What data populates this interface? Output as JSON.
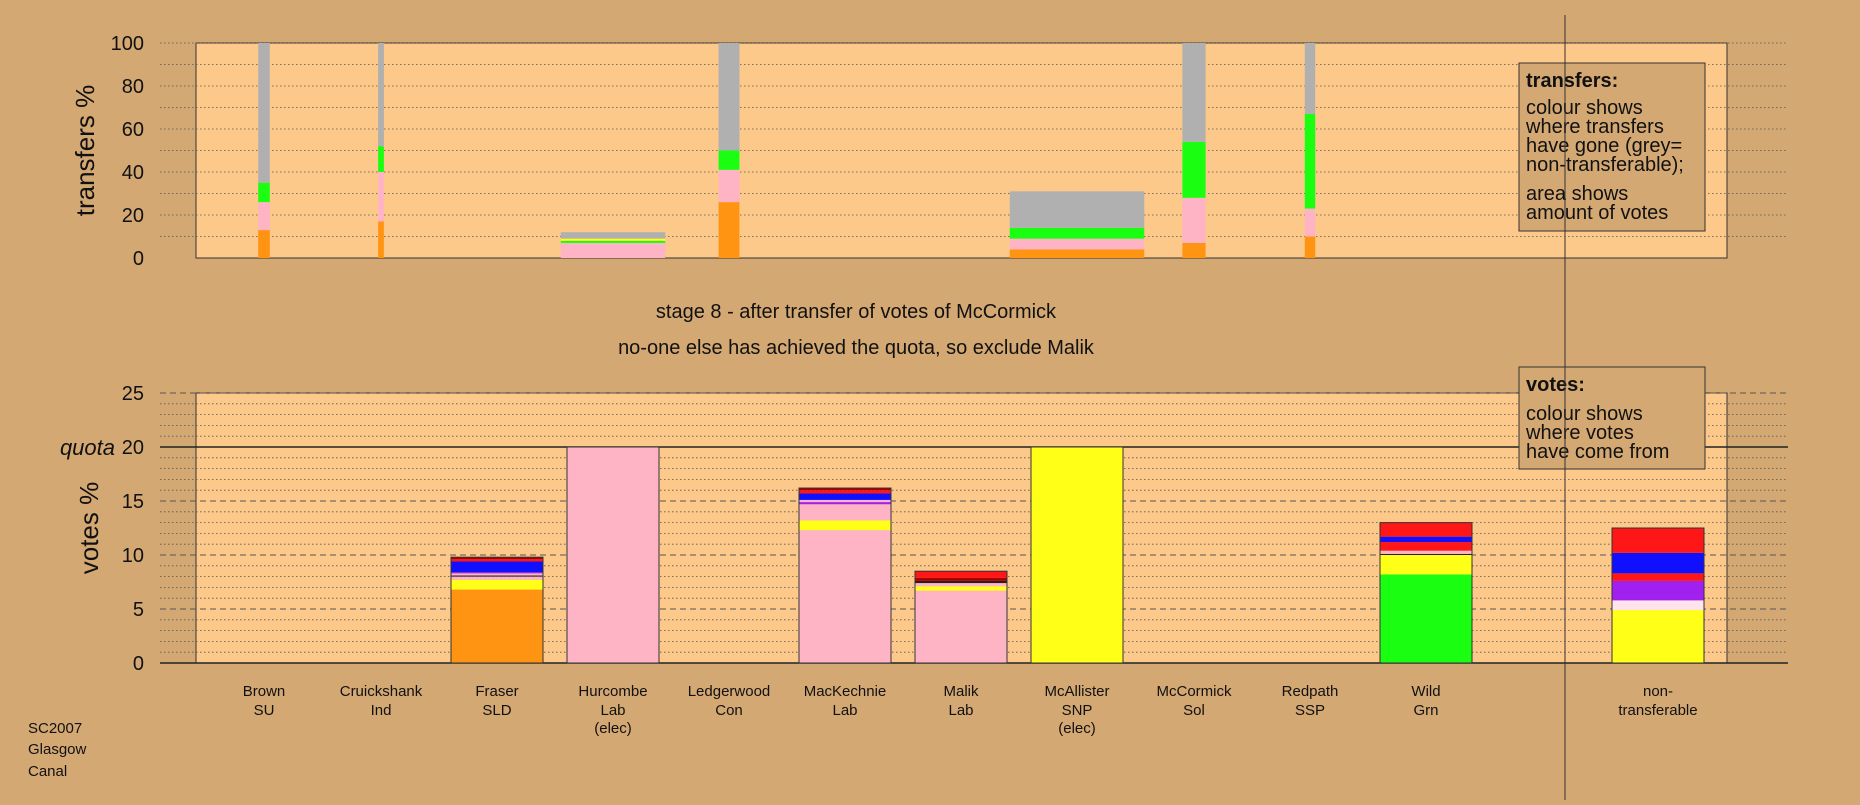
{
  "colors": {
    "background": "#d4a873",
    "plot_bg": "#fcc98a",
    "SLD": "#ff9412",
    "Lab": "#ffb4c6",
    "SNP": "#ffff18",
    "Grn": "#1aff11",
    "SSP": "#ff1616",
    "Con": "#1010ff",
    "SU": "#a020f0",
    "Sol": "#ac0000",
    "Ind": "#202020",
    "Other": "#ffe4ec",
    "nontransferable": "#b0b0b0"
  },
  "chart_data": [
    {
      "type": "bar",
      "title": "",
      "ylabel": "transfers %",
      "ylim": [
        0,
        100
      ],
      "yticks": [
        0,
        20,
        40,
        60,
        80,
        100
      ],
      "legend_box": {
        "title": "transfers:",
        "lines1": [
          "colour shows",
          "where transfers",
          "have gone (grey=",
          "non-transferable);"
        ],
        "lines2": [
          "area shows",
          "amount of votes"
        ]
      },
      "bars": [
        {
          "candidate": "Brown",
          "width": 0.1,
          "segments": [
            {
              "party": "SLD",
              "value": 13
            },
            {
              "party": "Lab",
              "value": 13
            },
            {
              "party": "Grn",
              "value": 9
            },
            {
              "party": "nontransferable",
              "value": 65
            }
          ]
        },
        {
          "candidate": "Cruickshank",
          "width": 0.05,
          "segments": [
            {
              "party": "SLD",
              "value": 17
            },
            {
              "party": "Lab",
              "value": 23
            },
            {
              "party": "Grn",
              "value": 12
            },
            {
              "party": "nontransferable",
              "value": 48
            }
          ]
        },
        {
          "candidate": "Hurcombe",
          "width": 0.9,
          "segments": [
            {
              "party": "Lab",
              "value": 7
            },
            {
              "party": "Grn",
              "value": 1
            },
            {
              "party": "SNP",
              "value": 1
            },
            {
              "party": "nontransferable",
              "value": 3
            }
          ]
        },
        {
          "candidate": "Ledgerwood",
          "width": 0.18,
          "segments": [
            {
              "party": "SLD",
              "value": 26
            },
            {
              "party": "Lab",
              "value": 15
            },
            {
              "party": "Grn",
              "value": 9
            },
            {
              "party": "nontransferable",
              "value": 50
            }
          ]
        },
        {
          "candidate": "McAllister",
          "width": 1.16,
          "segments": [
            {
              "party": "SLD",
              "value": 4
            },
            {
              "party": "Lab",
              "value": 5
            },
            {
              "party": "Grn",
              "value": 5
            },
            {
              "party": "nontransferable",
              "value": 17
            }
          ]
        },
        {
          "candidate": "McCormick",
          "width": 0.2,
          "segments": [
            {
              "party": "SLD",
              "value": 7
            },
            {
              "party": "Lab",
              "value": 21
            },
            {
              "party": "Grn",
              "value": 26
            },
            {
              "party": "nontransferable",
              "value": 46
            }
          ]
        },
        {
          "candidate": "Redpath",
          "width": 0.09,
          "segments": [
            {
              "party": "SLD",
              "value": 10
            },
            {
              "party": "Lab",
              "value": 13
            },
            {
              "party": "Grn",
              "value": 44
            },
            {
              "party": "nontransferable",
              "value": 33
            }
          ]
        }
      ]
    },
    {
      "type": "bar",
      "title": "",
      "ylabel": "votes %",
      "ylim": [
        0,
        25
      ],
      "yticks": [
        0,
        5,
        10,
        15,
        20,
        25
      ],
      "quota": 20,
      "quota_label": "quota",
      "legend_box": {
        "title": "votes:",
        "lines1": [
          "colour shows",
          "where votes",
          "have come from"
        ]
      },
      "candidates": [
        {
          "name": "Brown",
          "party": "SU",
          "elected": "",
          "segments": []
        },
        {
          "name": "Cruickshank",
          "party": "Ind",
          "elected": "",
          "segments": []
        },
        {
          "name": "Fraser",
          "party": "SLD",
          "elected": "",
          "segments": [
            {
              "party": "SLD",
              "value": 6.8
            },
            {
              "party": "SNP",
              "value": 0.9
            },
            {
              "party": "Lab",
              "value": 0.3
            },
            {
              "party": "Ind",
              "value": 0.1
            },
            {
              "party": "Lab",
              "value": 0.2
            },
            {
              "party": "SU",
              "value": 0.1
            },
            {
              "party": "Con",
              "value": 1.0
            },
            {
              "party": "SSP",
              "value": 0.2
            },
            {
              "party": "Sol",
              "value": 0.2
            }
          ]
        },
        {
          "name": "Hurcombe",
          "party": "Lab",
          "elected": "(elec)",
          "segments": [
            {
              "party": "Lab",
              "value": 20
            }
          ]
        },
        {
          "name": "Ledgerwood",
          "party": "Con",
          "elected": "",
          "segments": []
        },
        {
          "name": "MacKechnie",
          "party": "Lab",
          "elected": "",
          "segments": [
            {
              "party": "Lab",
              "value": 12.3
            },
            {
              "party": "SNP",
              "value": 0.9
            },
            {
              "party": "Lab",
              "value": 1.5
            },
            {
              "party": "SU",
              "value": 0.2
            },
            {
              "party": "Lab",
              "value": 0.2
            },
            {
              "party": "Con",
              "value": 0.6
            },
            {
              "party": "SSP",
              "value": 0.3
            },
            {
              "party": "Sol",
              "value": 0.2
            }
          ]
        },
        {
          "name": "Malik",
          "party": "Lab",
          "elected": "",
          "segments": [
            {
              "party": "Lab",
              "value": 6.7
            },
            {
              "party": "SNP",
              "value": 0.4
            },
            {
              "party": "Lab",
              "value": 0.3
            },
            {
              "party": "Ind",
              "value": 0.2
            },
            {
              "party": "Sol",
              "value": 0.3
            },
            {
              "party": "SSP",
              "value": 0.6
            }
          ]
        },
        {
          "name": "McAllister",
          "party": "SNP",
          "elected": "(elec)",
          "segments": [
            {
              "party": "SNP",
              "value": 20
            }
          ]
        },
        {
          "name": "McCormick",
          "party": "Sol",
          "elected": "",
          "segments": []
        },
        {
          "name": "Redpath",
          "party": "SSP",
          "elected": "",
          "segments": []
        },
        {
          "name": "Wild",
          "party": "Grn",
          "elected": "",
          "segments": [
            {
              "party": "Grn",
              "value": 8.2
            },
            {
              "party": "SNP",
              "value": 1.8
            },
            {
              "party": "Ind",
              "value": 0.1
            },
            {
              "party": "Lab",
              "value": 0.3
            },
            {
              "party": "SSP",
              "value": 0.8
            },
            {
              "party": "Con",
              "value": 0.5
            },
            {
              "party": "SSP",
              "value": 1.3
            }
          ]
        },
        {
          "name": "non-",
          "party": "transferable",
          "elected": "",
          "segments": [
            {
              "party": "SNP",
              "value": 4.9
            },
            {
              "party": "Other",
              "value": 0.9
            },
            {
              "party": "SU",
              "value": 0.4
            },
            {
              "party": "SU",
              "value": 1.4
            },
            {
              "party": "SSP",
              "value": 0.7
            },
            {
              "party": "Con",
              "value": 1.9
            },
            {
              "party": "SSP",
              "value": 2.3
            }
          ]
        }
      ]
    }
  ],
  "stage_line1": "stage 8 - after transfer of votes of McCormick",
  "stage_line2": "no-one else has achieved the quota, so exclude Malik",
  "footer": [
    "SC2007",
    "Glasgow",
    "Canal"
  ]
}
